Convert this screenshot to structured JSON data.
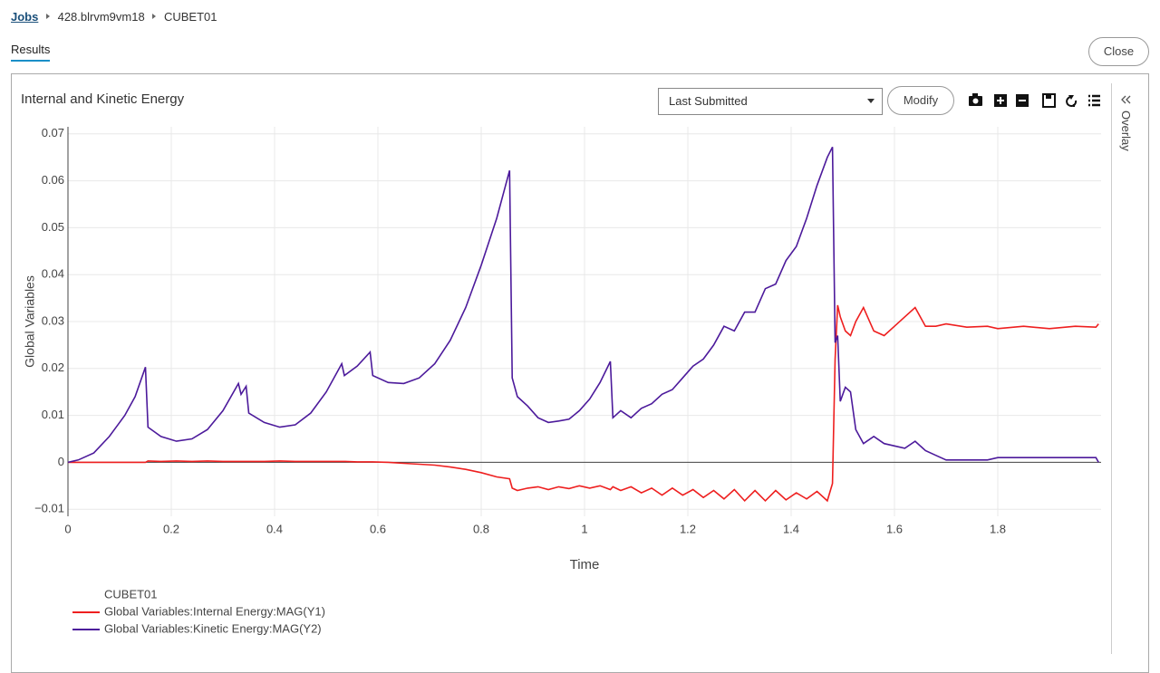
{
  "breadcrumb": [
    "Jobs",
    "428.blrvm9vm18",
    "CUBET01"
  ],
  "tabs": [
    "Results"
  ],
  "close_button": "Close",
  "panel": {
    "title": "Internal and Kinetic Energy",
    "dropdown": "Last Submitted",
    "modify_button": "Modify",
    "side_panel": "Overlay"
  },
  "chart_data": {
    "type": "line",
    "xlabel": "Time",
    "ylabel": "Global Variables",
    "legend_title": "CUBET01",
    "grid": true,
    "zeroline": true,
    "xlim": [
      0,
      2
    ],
    "xticks": [
      0,
      0.2,
      0.4,
      0.6,
      0.8,
      1,
      1.2,
      1.4,
      1.6,
      1.8
    ],
    "ylim": [
      -0.0115,
      0.0715
    ],
    "yticks": [
      {
        "value": -0.01,
        "label": "−0.01"
      },
      0,
      0.01,
      0.02,
      0.03,
      0.04,
      0.05,
      0.06,
      0.07
    ],
    "x": [
      0,
      0.02,
      0.05,
      0.08,
      0.11,
      0.13,
      0.15,
      0.155,
      0.18,
      0.21,
      0.24,
      0.27,
      0.3,
      0.33,
      0.335,
      0.345,
      0.35,
      0.38,
      0.41,
      0.44,
      0.47,
      0.5,
      0.53,
      0.535,
      0.56,
      0.585,
      0.59,
      0.62,
      0.65,
      0.68,
      0.71,
      0.74,
      0.77,
      0.8,
      0.83,
      0.855,
      0.86,
      0.87,
      0.89,
      0.91,
      0.93,
      0.95,
      0.97,
      0.99,
      1.01,
      1.03,
      1.05,
      1.055,
      1.07,
      1.09,
      1.11,
      1.13,
      1.15,
      1.17,
      1.19,
      1.21,
      1.23,
      1.25,
      1.27,
      1.29,
      1.31,
      1.33,
      1.35,
      1.37,
      1.39,
      1.41,
      1.43,
      1.45,
      1.47,
      1.48,
      1.485,
      1.49,
      1.495,
      1.505,
      1.515,
      1.525,
      1.54,
      1.56,
      1.58,
      1.6,
      1.62,
      1.64,
      1.66,
      1.68,
      1.7,
      1.74,
      1.78,
      1.8,
      1.85,
      1.9,
      1.95,
      1.99,
      1.995
    ],
    "series": [
      {
        "name": "Global Variables:Internal Energy:MAG(Y1)",
        "color": "#ee1f1f",
        "values": [
          0,
          0,
          0,
          0,
          0,
          0,
          0,
          0.0003,
          0.0002,
          0.0003,
          0.0002,
          0.0003,
          0.0002,
          0.0002,
          0.0002,
          0.0002,
          0.0002,
          0.0002,
          0.0003,
          0.0002,
          0.0002,
          0.0002,
          0.0002,
          0.0002,
          0.0001,
          0.0001,
          0.0001,
          0,
          -0.0002,
          -0.0004,
          -0.0006,
          -0.001,
          -0.0015,
          -0.0022,
          -0.0031,
          -0.0035,
          -0.0055,
          -0.006,
          -0.0055,
          -0.0052,
          -0.0058,
          -0.0052,
          -0.0056,
          -0.005,
          -0.0055,
          -0.005,
          -0.0058,
          -0.0052,
          -0.006,
          -0.0052,
          -0.0065,
          -0.0055,
          -0.007,
          -0.0055,
          -0.007,
          -0.0058,
          -0.0075,
          -0.006,
          -0.0078,
          -0.0058,
          -0.0082,
          -0.006,
          -0.0082,
          -0.006,
          -0.008,
          -0.0065,
          -0.0078,
          -0.0062,
          -0.0082,
          -0.0045,
          0.022,
          0.0335,
          0.031,
          0.028,
          0.027,
          0.03,
          0.033,
          0.028,
          0.027,
          0.029,
          0.031,
          0.033,
          0.029,
          0.029,
          0.0295,
          0.0288,
          0.029,
          0.0285,
          0.029,
          0.0285,
          0.029,
          0.0288,
          0.0295
        ]
      },
      {
        "name": "Global Variables:Kinetic Energy:MAG(Y2)",
        "color": "#4c1a9b",
        "values": [
          0,
          0.0005,
          0.002,
          0.0055,
          0.01,
          0.014,
          0.0203,
          0.0075,
          0.0055,
          0.0045,
          0.005,
          0.007,
          0.011,
          0.0168,
          0.0145,
          0.0162,
          0.0105,
          0.0085,
          0.0075,
          0.008,
          0.0105,
          0.015,
          0.021,
          0.0185,
          0.0205,
          0.0235,
          0.0185,
          0.017,
          0.0168,
          0.018,
          0.021,
          0.026,
          0.033,
          0.042,
          0.052,
          0.0622,
          0.018,
          0.014,
          0.012,
          0.0095,
          0.0085,
          0.0088,
          0.0092,
          0.011,
          0.0135,
          0.017,
          0.0215,
          0.0095,
          0.011,
          0.0095,
          0.0115,
          0.0125,
          0.0145,
          0.0155,
          0.018,
          0.0205,
          0.022,
          0.025,
          0.029,
          0.028,
          0.032,
          0.032,
          0.037,
          0.038,
          0.043,
          0.046,
          0.052,
          0.059,
          0.065,
          0.0672,
          0.0255,
          0.027,
          0.013,
          0.016,
          0.015,
          0.007,
          0.004,
          0.0055,
          0.004,
          0.0035,
          0.003,
          0.0045,
          0.0025,
          0.0015,
          0.0005,
          0.0005,
          0.0005,
          0.001,
          0.001,
          0.001,
          0.001,
          0.001,
          0
        ]
      }
    ]
  }
}
